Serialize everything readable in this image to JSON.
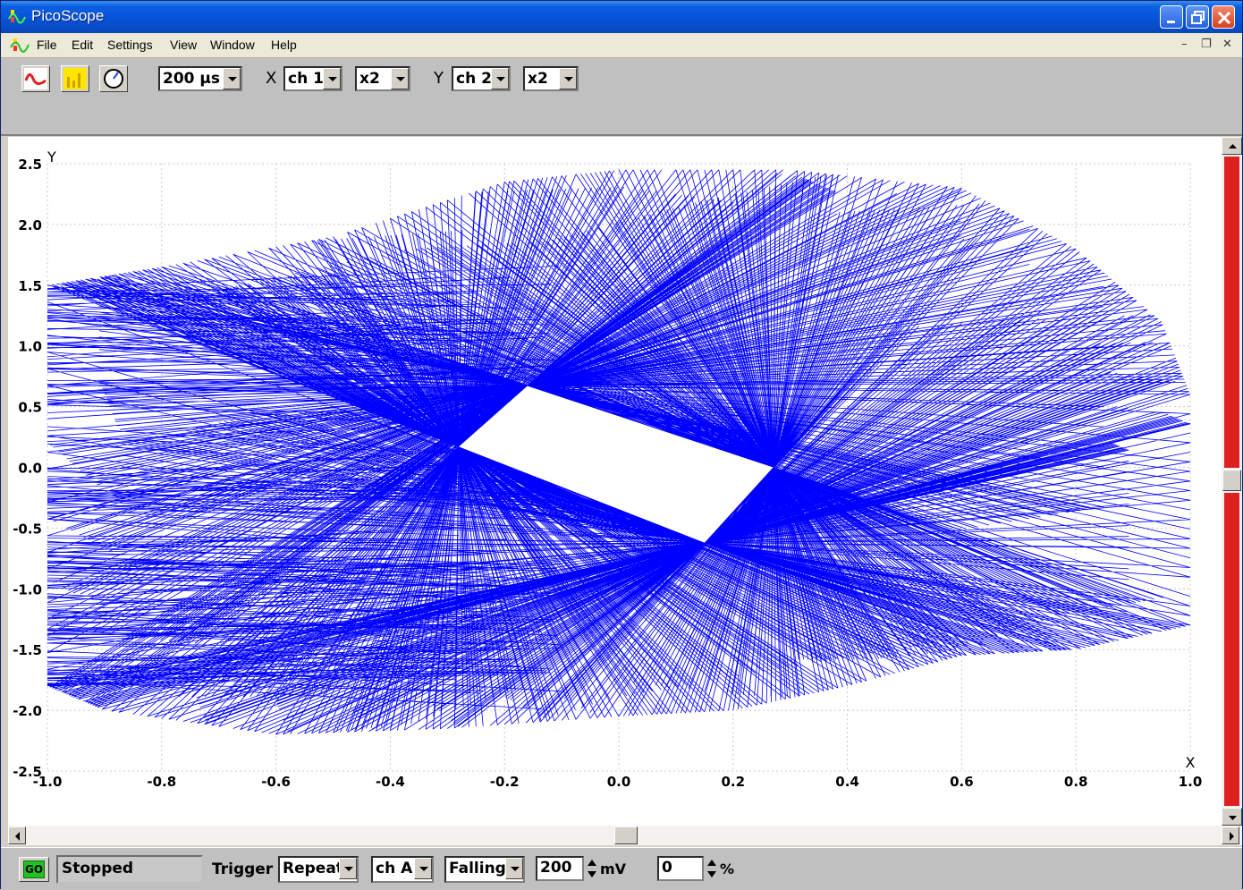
{
  "window": {
    "title": "PicoScope"
  },
  "menu": {
    "items": [
      "File",
      "Edit",
      "Settings",
      "View",
      "Window",
      "Help"
    ]
  },
  "toolbar": {
    "timebase": "200 µs",
    "x_label": "X",
    "x_channel": "ch 1",
    "x_scale": "x2",
    "y_label": "Y",
    "y_channel": "ch 2",
    "y_scale": "x2",
    "icons": [
      "scope-view-icon",
      "spectrum-view-icon",
      "meter-view-icon"
    ]
  },
  "chart_data": {
    "type": "line",
    "title": "",
    "xlabel": "X",
    "ylabel": "Y",
    "xlim": [
      -1.0,
      1.0
    ],
    "ylim": [
      -2.5,
      2.5
    ],
    "x_ticks": [
      "-1.0",
      "-0.8",
      "-0.6",
      "-0.4",
      "-0.2",
      "0.0",
      "0.2",
      "0.4",
      "0.6",
      "0.8",
      "1.0"
    ],
    "y_ticks": [
      "2.5",
      "2.0",
      "1.5",
      "1.0",
      "0.5",
      "0.0",
      "-0.5",
      "-1.0",
      "-1.5",
      "-2.0",
      "-2.5"
    ],
    "grid": "dotted",
    "series": [
      {
        "color": "#0000ff",
        "outer_envelope": [
          [
            -1.0,
            1.5
          ],
          [
            -0.8,
            1.65
          ],
          [
            -0.5,
            1.9
          ],
          [
            -0.2,
            2.35
          ],
          [
            0.0,
            2.45
          ],
          [
            0.3,
            2.45
          ],
          [
            0.6,
            2.3
          ],
          [
            0.8,
            1.8
          ],
          [
            0.95,
            1.2
          ],
          [
            1.0,
            0.6
          ],
          [
            1.0,
            -1.3
          ],
          [
            0.8,
            -1.5
          ],
          [
            0.6,
            -1.55
          ],
          [
            0.4,
            -1.8
          ],
          [
            0.2,
            -2.0
          ],
          [
            0.0,
            -2.05
          ],
          [
            -0.3,
            -2.15
          ],
          [
            -0.6,
            -2.2
          ],
          [
            -0.9,
            -2.0
          ],
          [
            -1.0,
            -1.8
          ]
        ],
        "inner_hole": [
          [
            -0.28,
            0.17
          ],
          [
            -0.16,
            0.67
          ],
          [
            0.27,
            0.0
          ],
          [
            0.15,
            -0.62
          ]
        ]
      }
    ]
  },
  "status": {
    "go_label": "GO",
    "state": "Stopped",
    "trigger_label": "Trigger",
    "trigger_mode": "Repeat",
    "trigger_channel": "ch A",
    "trigger_edge": "Falling",
    "trigger_level": "200",
    "level_unit": "mV",
    "pretrigger": "0",
    "pretrigger_unit": "%"
  },
  "colors": {
    "trace": "#0000ff",
    "titlebar": "#0752d6",
    "scroll_indicator": "#e02020",
    "go": "#22c022"
  }
}
